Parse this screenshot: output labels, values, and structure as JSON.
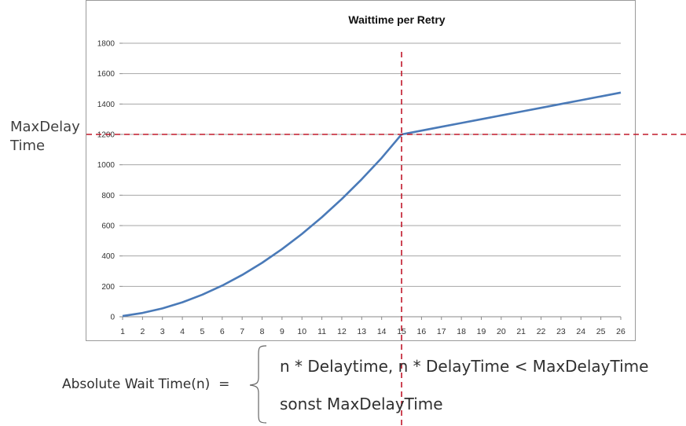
{
  "chart_data": {
    "type": "line",
    "title": "Waittime per Retry",
    "xlabel": "",
    "ylabel": "",
    "x": [
      1,
      2,
      3,
      4,
      5,
      6,
      7,
      8,
      9,
      10,
      11,
      12,
      13,
      14,
      15,
      16,
      17,
      18,
      19,
      20,
      21,
      22,
      23,
      24,
      25,
      26
    ],
    "series": [
      {
        "values": [
          5,
          25,
          55,
          95,
          145,
          205,
          275,
          355,
          445,
          545,
          655,
          775,
          905,
          1045,
          1200,
          1225,
          1250,
          1275,
          1300,
          1325,
          1350,
          1375,
          1400,
          1425,
          1450,
          1475
        ]
      }
    ],
    "ylim": [
      0,
      1800
    ],
    "yticks": [
      0,
      200,
      400,
      600,
      800,
      1000,
      1200,
      1400,
      1600,
      1800
    ],
    "grid": true,
    "legend": "none",
    "colors": {
      "line": "#4a7ab8",
      "guide": "#c0182a",
      "grid": "#a6a6a6"
    },
    "reference_lines": {
      "x": 15,
      "y": 1200
    }
  },
  "labels": {
    "max_delay": [
      "MaxDelay",
      "Time"
    ],
    "formula_lhs": "Absolute Wait Time(n)  =",
    "formula_case1": "n * Delaytime, n * DelayTime < MaxDelayTime",
    "formula_case2": "sonst MaxDelayTime"
  }
}
